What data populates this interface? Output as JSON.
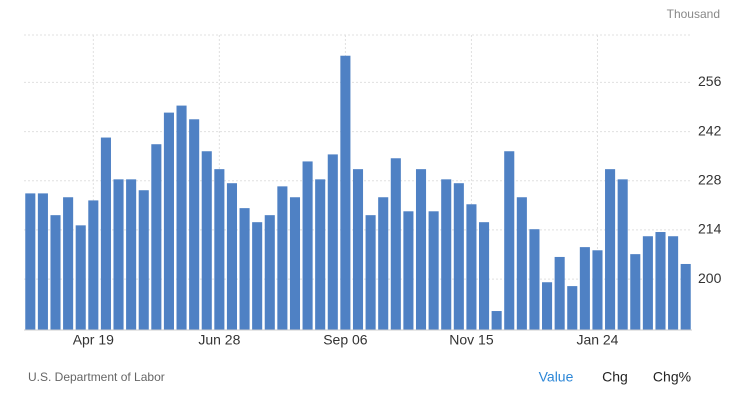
{
  "chart_data": {
    "type": "bar",
    "y_label": "Thousand",
    "categories": [
      null,
      null,
      null,
      null,
      null,
      "Apr 19",
      null,
      null,
      null,
      null,
      null,
      null,
      null,
      null,
      null,
      "Jun 28",
      null,
      null,
      null,
      null,
      null,
      null,
      null,
      null,
      null,
      "Sep 06",
      null,
      null,
      null,
      null,
      null,
      null,
      null,
      null,
      null,
      "Nov 15",
      null,
      null,
      null,
      null,
      null,
      null,
      null,
      null,
      null,
      "Jan 24",
      null,
      null,
      null,
      null,
      null,
      null,
      null
    ],
    "values": [
      224.4,
      224.4,
      218.2,
      223.3,
      215.3,
      222.4,
      240.3,
      228.4,
      228.4,
      225.3,
      238.4,
      247.4,
      249.4,
      245.5,
      236.4,
      231.3,
      227.3,
      220.2,
      216.2,
      218.2,
      226.4,
      223.3,
      233.5,
      228.4,
      235.5,
      263.6,
      231.3,
      218.2,
      223.3,
      234.4,
      219.3,
      231.3,
      219.3,
      228.4,
      227.3,
      221.3,
      216.2,
      190.9,
      236.4,
      223.3,
      214.2,
      199.1,
      206.3,
      198.0,
      209.1,
      208.2,
      231.3,
      228.4,
      207.1,
      212.2,
      213.4,
      212.2,
      204.3
    ],
    "color": "#4f81c4",
    "ylim": [
      185.5,
      269.5
    ],
    "yticks": [
      200,
      214,
      228,
      242,
      256
    ],
    "grid": true,
    "y_axis_side": "right"
  },
  "footer": {
    "source": "U.S. Department of Labor",
    "buttons": [
      "Value",
      "Chg",
      "Chg%"
    ],
    "active_button": 0
  }
}
